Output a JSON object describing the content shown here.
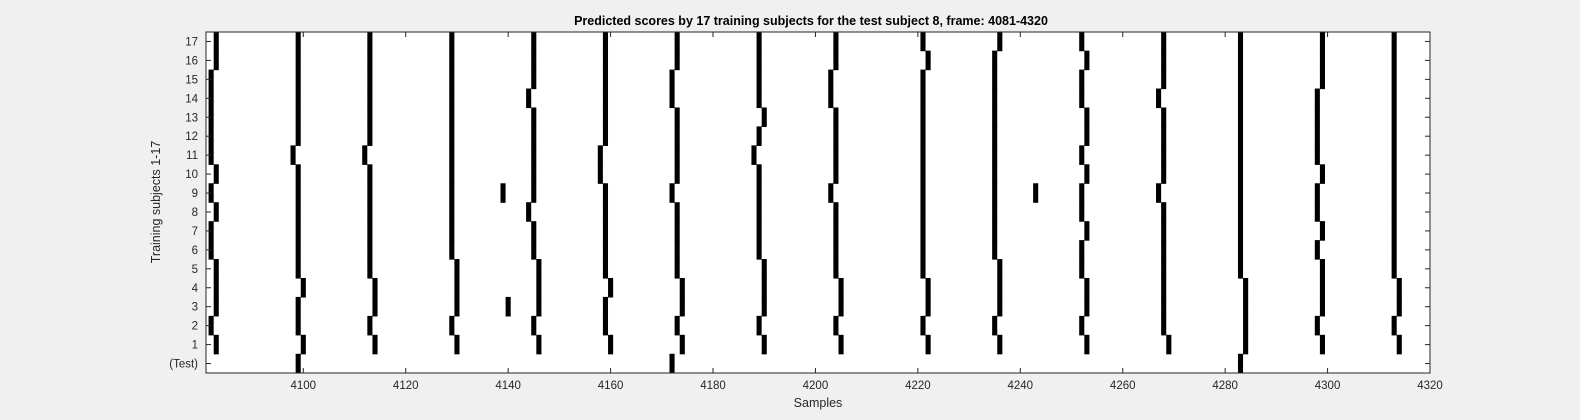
{
  "chart_data": {
    "type": "heatmap",
    "title": "Predicted scores by 17 training subjects for the test subject 8, frame: 4081-4320",
    "xlabel": "Samples",
    "ylabel": "Training subjects 1-17",
    "xlim": [
      4081,
      4320
    ],
    "x_ticks": [
      "4100",
      "4120",
      "4140",
      "4160",
      "4180",
      "4200",
      "4220",
      "4240",
      "4260",
      "4280",
      "4300",
      "4320"
    ],
    "y_tick_labels": [
      "(Test)",
      "1",
      "2",
      "3",
      "4",
      "5",
      "6",
      "7",
      "8",
      "9",
      "10",
      "11",
      "12",
      "13",
      "14",
      "15",
      "16",
      "17"
    ],
    "colors": {
      "mark": "#000000",
      "background": "#ffffff"
    },
    "rows": [
      {
        "label": "(Test)",
        "samples": [
          4099,
          4172,
          4283
        ]
      },
      {
        "label": "1",
        "samples": [
          4083,
          4100,
          4114,
          4130,
          4146,
          4160,
          4174,
          4190,
          4205,
          4222,
          4236,
          4253,
          4269,
          4284,
          4299,
          4314
        ]
      },
      {
        "label": "2",
        "samples": [
          4082,
          4099,
          4113,
          4129,
          4145,
          4159,
          4173,
          4189,
          4204,
          4221,
          4235,
          4252,
          4268,
          4284,
          4298,
          4313
        ]
      },
      {
        "label": "3",
        "samples": [
          4083,
          4099,
          4114,
          4130,
          4140,
          4146,
          4159,
          4174,
          4190,
          4205,
          4222,
          4236,
          4253,
          4268,
          4284,
          4299,
          4314
        ]
      },
      {
        "label": "4",
        "samples": [
          4083,
          4100,
          4114,
          4130,
          4146,
          4160,
          4174,
          4190,
          4205,
          4222,
          4236,
          4253,
          4268,
          4284,
          4299,
          4314
        ]
      },
      {
        "label": "5",
        "samples": [
          4083,
          4099,
          4113,
          4130,
          4146,
          4159,
          4173,
          4190,
          4204,
          4221,
          4236,
          4252,
          4268,
          4283,
          4299,
          4313
        ]
      },
      {
        "label": "6",
        "samples": [
          4082,
          4099,
          4113,
          4129,
          4145,
          4159,
          4173,
          4189,
          4204,
          4221,
          4235,
          4252,
          4268,
          4283,
          4298,
          4313
        ]
      },
      {
        "label": "7",
        "samples": [
          4082,
          4099,
          4113,
          4129,
          4145,
          4159,
          4173,
          4189,
          4204,
          4221,
          4235,
          4253,
          4268,
          4283,
          4299,
          4313
        ]
      },
      {
        "label": "8",
        "samples": [
          4083,
          4099,
          4113,
          4129,
          4144,
          4159,
          4173,
          4189,
          4204,
          4221,
          4235,
          4252,
          4268,
          4283,
          4298,
          4313
        ]
      },
      {
        "label": "9",
        "samples": [
          4082,
          4099,
          4113,
          4129,
          4139,
          4145,
          4159,
          4172,
          4189,
          4203,
          4221,
          4235,
          4243,
          4252,
          4267,
          4283,
          4298,
          4313
        ]
      },
      {
        "label": "10",
        "samples": [
          4083,
          4099,
          4113,
          4129,
          4145,
          4158,
          4173,
          4189,
          4204,
          4221,
          4235,
          4253,
          4268,
          4283,
          4299,
          4313
        ]
      },
      {
        "label": "11",
        "samples": [
          4082,
          4098,
          4112,
          4129,
          4145,
          4158,
          4173,
          4188,
          4204,
          4221,
          4235,
          4252,
          4268,
          4283,
          4298,
          4313
        ]
      },
      {
        "label": "12",
        "samples": [
          4082,
          4099,
          4113,
          4129,
          4145,
          4159,
          4173,
          4189,
          4204,
          4221,
          4235,
          4253,
          4268,
          4283,
          4298,
          4313
        ]
      },
      {
        "label": "13",
        "samples": [
          4082,
          4099,
          4113,
          4129,
          4145,
          4159,
          4173,
          4190,
          4204,
          4221,
          4235,
          4253,
          4268,
          4283,
          4298,
          4313
        ]
      },
      {
        "label": "14",
        "samples": [
          4082,
          4099,
          4113,
          4129,
          4144,
          4159,
          4172,
          4189,
          4203,
          4221,
          4235,
          4252,
          4267,
          4283,
          4298,
          4313
        ]
      },
      {
        "label": "15",
        "samples": [
          4082,
          4099,
          4113,
          4129,
          4145,
          4159,
          4172,
          4189,
          4203,
          4221,
          4235,
          4252,
          4268,
          4283,
          4299,
          4313
        ]
      },
      {
        "label": "16",
        "samples": [
          4083,
          4099,
          4113,
          4129,
          4145,
          4159,
          4173,
          4189,
          4204,
          4222,
          4235,
          4253,
          4268,
          4283,
          4299,
          4313
        ]
      },
      {
        "label": "17",
        "samples": [
          4083,
          4099,
          4113,
          4129,
          4145,
          4159,
          4173,
          4189,
          4204,
          4221,
          4236,
          4252,
          4268,
          4283,
          4299,
          4313
        ]
      }
    ]
  }
}
